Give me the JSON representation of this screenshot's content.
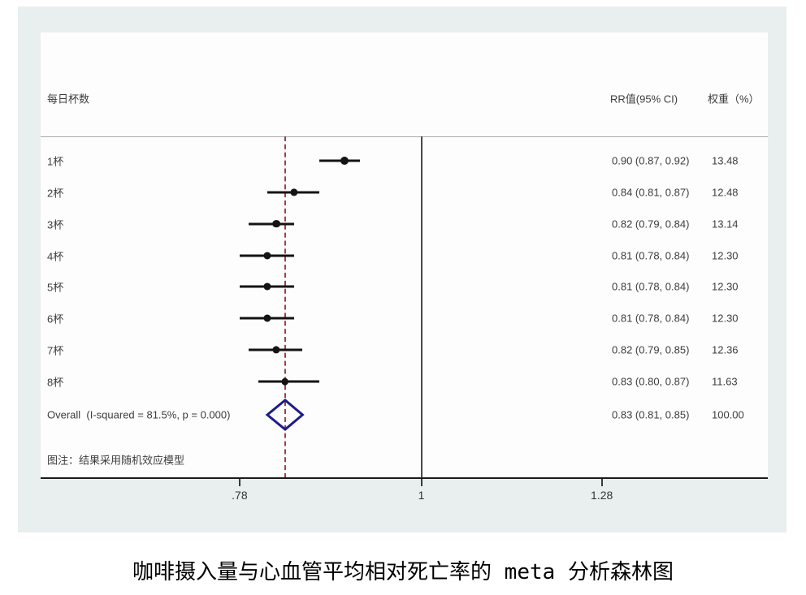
{
  "header": {
    "study_col": "每日杯数",
    "rr_col": "RR值(95% CI)",
    "weight_col": "权重（%）"
  },
  "chart_data": {
    "type": "forest",
    "x_axis": {
      "scale": "log",
      "ticks": [
        {
          "label": ".78",
          "value": 0.78
        },
        {
          "label": "1",
          "value": 1.0
        },
        {
          "label": "1.28",
          "value": 1.28
        }
      ],
      "ref_line_value": 1.0,
      "pooled_line_value": 0.83
    },
    "rows": [
      {
        "label": "1杯",
        "rr": 0.9,
        "ci_low": 0.87,
        "ci_high": 0.92,
        "rr_text": "0.90 (0.87, 0.92)",
        "weight": 13.48,
        "weight_text": "13.48"
      },
      {
        "label": "2杯",
        "rr": 0.84,
        "ci_low": 0.81,
        "ci_high": 0.87,
        "rr_text": "0.84 (0.81, 0.87)",
        "weight": 12.48,
        "weight_text": "12.48"
      },
      {
        "label": "3杯",
        "rr": 0.82,
        "ci_low": 0.79,
        "ci_high": 0.84,
        "rr_text": "0.82 (0.79, 0.84)",
        "weight": 13.14,
        "weight_text": "13.14"
      },
      {
        "label": "4杯",
        "rr": 0.81,
        "ci_low": 0.78,
        "ci_high": 0.84,
        "rr_text": "0.81 (0.78, 0.84)",
        "weight": 12.3,
        "weight_text": "12.30"
      },
      {
        "label": "5杯",
        "rr": 0.81,
        "ci_low": 0.78,
        "ci_high": 0.84,
        "rr_text": "0.81 (0.78, 0.84)",
        "weight": 12.3,
        "weight_text": "12.30"
      },
      {
        "label": "6杯",
        "rr": 0.81,
        "ci_low": 0.78,
        "ci_high": 0.84,
        "rr_text": "0.81 (0.78, 0.84)",
        "weight": 12.3,
        "weight_text": "12.30"
      },
      {
        "label": "7杯",
        "rr": 0.82,
        "ci_low": 0.79,
        "ci_high": 0.85,
        "rr_text": "0.82 (0.79, 0.85)",
        "weight": 12.36,
        "weight_text": "12.36"
      },
      {
        "label": "8杯",
        "rr": 0.83,
        "ci_low": 0.8,
        "ci_high": 0.87,
        "rr_text": "0.83 (0.80, 0.87)",
        "weight": 11.63,
        "weight_text": "11.63"
      }
    ],
    "overall": {
      "label": "Overall  (I-squared = 81.5%, p = 0.000)",
      "rr": 0.83,
      "ci_low": 0.81,
      "ci_high": 0.85,
      "rr_text": "0.83 (0.81, 0.85)",
      "weight_text": "100.00"
    },
    "note": "图注：结果采用随机效应模型"
  },
  "caption": "咖啡摄入量与心血管平均相对死亡率的 meta 分析森林图",
  "colors": {
    "panel_bg": "#e8efee",
    "plot_bg": "#fdfdfd",
    "ci_line": "#141414",
    "marker": "#141414",
    "diamond_stroke": "#1c1c8a",
    "pooled_dash": "#9c3f49",
    "ref_line": "#4a4a4a",
    "text": "#3d3d3d"
  }
}
